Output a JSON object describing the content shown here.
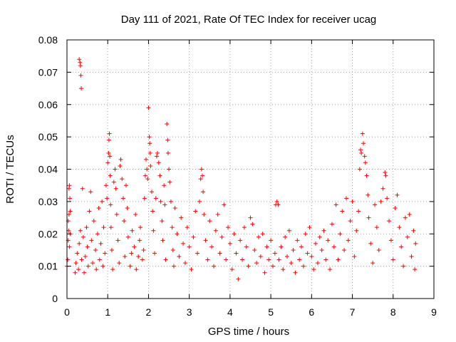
{
  "chart_data": {
    "type": "scatter",
    "title": "Day 111 of 2021, Rate Of TEC Index for receiver ucag",
    "xlabel": "GPS time / hours",
    "ylabel": "ROTI / TECUs",
    "xlim": [
      0,
      9
    ],
    "ylim": [
      0,
      0.08
    ],
    "xticks": [
      0,
      1,
      2,
      3,
      4,
      5,
      6,
      7,
      8,
      9
    ],
    "xtick_labels": [
      "0",
      "1",
      "2",
      "3",
      "4",
      "5",
      "6",
      "7",
      "8",
      "9"
    ],
    "yticks": [
      0,
      0.01,
      0.02,
      0.03,
      0.04,
      0.05,
      0.06,
      0.07,
      0.08
    ],
    "ytick_labels": [
      "0",
      "0.01",
      "0.02",
      "0.03",
      "0.04",
      "0.05",
      "0.06",
      "0.07",
      "0.08"
    ],
    "grid": true,
    "marker": "+",
    "color": "#ff0000",
    "series": [
      {
        "name": "ROTI",
        "points": [
          [
            0.0,
            0.01
          ],
          [
            0.02,
            0.012
          ],
          [
            0.03,
            0.018
          ],
          [
            0.04,
            0.021
          ],
          [
            0.05,
            0.026
          ],
          [
            0.05,
            0.034
          ],
          [
            0.06,
            0.035
          ],
          [
            0.07,
            0.031
          ],
          [
            0.08,
            0.027
          ],
          [
            0.06,
            0.016
          ],
          [
            0.03,
            0.024
          ],
          [
            0.08,
            0.02
          ],
          [
            0.3,
            0.074
          ],
          [
            0.32,
            0.073
          ],
          [
            0.33,
            0.072
          ],
          [
            0.34,
            0.069
          ],
          [
            0.35,
            0.065
          ],
          [
            0.2,
            0.008
          ],
          [
            0.22,
            0.011
          ],
          [
            0.25,
            0.014
          ],
          [
            0.28,
            0.009
          ],
          [
            0.3,
            0.017
          ],
          [
            0.33,
            0.021
          ],
          [
            0.36,
            0.012
          ],
          [
            0.38,
            0.034
          ],
          [
            0.4,
            0.019
          ],
          [
            0.42,
            0.008
          ],
          [
            0.45,
            0.013
          ],
          [
            0.48,
            0.022
          ],
          [
            0.5,
            0.016
          ],
          [
            0.52,
            0.01
          ],
          [
            0.55,
            0.027
          ],
          [
            0.58,
            0.033
          ],
          [
            0.6,
            0.018
          ],
          [
            0.63,
            0.011
          ],
          [
            0.66,
            0.024
          ],
          [
            0.7,
            0.015
          ],
          [
            0.72,
            0.009
          ],
          [
            0.75,
            0.02
          ],
          [
            0.78,
            0.028
          ],
          [
            0.8,
            0.012
          ],
          [
            0.83,
            0.017
          ],
          [
            0.86,
            0.03
          ],
          [
            0.88,
            0.01
          ],
          [
            0.9,
            0.022
          ],
          [
            0.93,
            0.014
          ],
          [
            0.96,
            0.035
          ],
          [
            0.98,
            0.031
          ],
          [
            1.0,
            0.042
          ],
          [
            1.02,
            0.045
          ],
          [
            1.03,
            0.049
          ],
          [
            1.04,
            0.051
          ],
          [
            1.05,
            0.044
          ],
          [
            1.06,
            0.038
          ],
          [
            1.07,
            0.029
          ],
          [
            1.08,
            0.022
          ],
          [
            1.1,
            0.015
          ],
          [
            1.12,
            0.009
          ],
          [
            1.15,
            0.036
          ],
          [
            1.18,
            0.04
          ],
          [
            1.2,
            0.034
          ],
          [
            1.22,
            0.026
          ],
          [
            1.25,
            0.018
          ],
          [
            1.28,
            0.011
          ],
          [
            1.3,
            0.041
          ],
          [
            1.32,
            0.043
          ],
          [
            1.35,
            0.037
          ],
          [
            1.38,
            0.031
          ],
          [
            1.4,
            0.024
          ],
          [
            1.42,
            0.013
          ],
          [
            1.45,
            0.035
          ],
          [
            1.48,
            0.028
          ],
          [
            1.5,
            0.019
          ],
          [
            1.55,
            0.01
          ],
          [
            1.58,
            0.014
          ],
          [
            1.6,
            0.021
          ],
          [
            1.65,
            0.016
          ],
          [
            1.68,
            0.026
          ],
          [
            1.7,
            0.009
          ],
          [
            1.75,
            0.013
          ],
          [
            1.78,
            0.018
          ],
          [
            1.8,
            0.022
          ],
          [
            1.85,
            0.012
          ],
          [
            1.88,
            0.015
          ],
          [
            1.9,
            0.031
          ],
          [
            1.92,
            0.038
          ],
          [
            1.94,
            0.043
          ],
          [
            1.96,
            0.04
          ],
          [
            1.98,
            0.037
          ],
          [
            2.0,
            0.059
          ],
          [
            2.02,
            0.05
          ],
          [
            2.03,
            0.048
          ],
          [
            2.04,
            0.045
          ],
          [
            2.05,
            0.041
          ],
          [
            2.08,
            0.033
          ],
          [
            2.1,
            0.027
          ],
          [
            2.12,
            0.021
          ],
          [
            2.15,
            0.014
          ],
          [
            2.18,
            0.031
          ],
          [
            2.2,
            0.044
          ],
          [
            2.22,
            0.045
          ],
          [
            2.25,
            0.042
          ],
          [
            2.28,
            0.038
          ],
          [
            2.3,
            0.03
          ],
          [
            2.33,
            0.024
          ],
          [
            2.35,
            0.018
          ],
          [
            2.38,
            0.035
          ],
          [
            2.4,
            0.029
          ],
          [
            2.42,
            0.012
          ],
          [
            2.45,
            0.054
          ],
          [
            2.47,
            0.049
          ],
          [
            2.48,
            0.045
          ],
          [
            2.5,
            0.04
          ],
          [
            2.52,
            0.036
          ],
          [
            2.55,
            0.03
          ],
          [
            2.58,
            0.022
          ],
          [
            2.6,
            0.015
          ],
          [
            2.62,
            0.01
          ],
          [
            2.65,
            0.028
          ],
          [
            2.7,
            0.02
          ],
          [
            2.75,
            0.013
          ],
          [
            2.8,
            0.025
          ],
          [
            2.85,
            0.017
          ],
          [
            2.9,
            0.011
          ],
          [
            2.95,
            0.022
          ],
          [
            3.0,
            0.016
          ],
          [
            3.05,
            0.009
          ],
          [
            3.1,
            0.019
          ],
          [
            3.15,
            0.027
          ],
          [
            3.2,
            0.014
          ],
          [
            3.25,
            0.03
          ],
          [
            3.28,
            0.037
          ],
          [
            3.3,
            0.04
          ],
          [
            3.32,
            0.038
          ],
          [
            3.34,
            0.033
          ],
          [
            3.36,
            0.026
          ],
          [
            3.4,
            0.018
          ],
          [
            3.45,
            0.012
          ],
          [
            3.5,
            0.024
          ],
          [
            3.55,
            0.016
          ],
          [
            3.6,
            0.01
          ],
          [
            3.65,
            0.021
          ],
          [
            3.7,
            0.026
          ],
          [
            3.75,
            0.014
          ],
          [
            3.8,
            0.019
          ],
          [
            3.85,
            0.029
          ],
          [
            3.9,
            0.012
          ],
          [
            3.95,
            0.022
          ],
          [
            4.0,
            0.017
          ],
          [
            4.05,
            0.009
          ],
          [
            4.1,
            0.02
          ],
          [
            4.15,
            0.014
          ],
          [
            4.2,
            0.006
          ],
          [
            4.25,
            0.018
          ],
          [
            4.3,
            0.012
          ],
          [
            4.35,
            0.022
          ],
          [
            4.4,
            0.016
          ],
          [
            4.45,
            0.01
          ],
          [
            4.5,
            0.025
          ],
          [
            4.55,
            0.023
          ],
          [
            4.6,
            0.015
          ],
          [
            4.65,
            0.011
          ],
          [
            4.7,
            0.019
          ],
          [
            4.75,
            0.013
          ],
          [
            4.8,
            0.02
          ],
          [
            4.85,
            0.008
          ],
          [
            4.9,
            0.016
          ],
          [
            4.95,
            0.012
          ],
          [
            5.0,
            0.018
          ],
          [
            5.05,
            0.01
          ],
          [
            5.1,
            0.014
          ],
          [
            5.12,
            0.029
          ],
          [
            5.15,
            0.03
          ],
          [
            5.18,
            0.029
          ],
          [
            5.2,
            0.012
          ],
          [
            5.25,
            0.016
          ],
          [
            5.3,
            0.009
          ],
          [
            5.35,
            0.019
          ],
          [
            5.4,
            0.013
          ],
          [
            5.45,
            0.021
          ],
          [
            5.5,
            0.011
          ],
          [
            5.55,
            0.015
          ],
          [
            5.6,
            0.008
          ],
          [
            5.65,
            0.018
          ],
          [
            5.7,
            0.012
          ],
          [
            5.75,
            0.016
          ],
          [
            5.8,
            0.01
          ],
          [
            5.85,
            0.02
          ],
          [
            5.9,
            0.014
          ],
          [
            5.95,
            0.022
          ],
          [
            6.0,
            0.013
          ],
          [
            6.05,
            0.009
          ],
          [
            6.1,
            0.017
          ],
          [
            6.15,
            0.011
          ],
          [
            6.2,
            0.019
          ],
          [
            6.25,
            0.015
          ],
          [
            6.3,
            0.021
          ],
          [
            6.35,
            0.012
          ],
          [
            6.4,
            0.018
          ],
          [
            6.45,
            0.009
          ],
          [
            6.5,
            0.023
          ],
          [
            6.55,
            0.016
          ],
          [
            6.6,
            0.029
          ],
          [
            6.65,
            0.012
          ],
          [
            6.7,
            0.02
          ],
          [
            6.75,
            0.027
          ],
          [
            6.8,
            0.015
          ],
          [
            6.85,
            0.031
          ],
          [
            6.9,
            0.018
          ],
          [
            6.95,
            0.024
          ],
          [
            7.0,
            0.03
          ],
          [
            7.05,
            0.013
          ],
          [
            7.1,
            0.021
          ],
          [
            7.15,
            0.027
          ],
          [
            7.18,
            0.04
          ],
          [
            7.2,
            0.046
          ],
          [
            7.22,
            0.045
          ],
          [
            7.25,
            0.051
          ],
          [
            7.27,
            0.048
          ],
          [
            7.3,
            0.044
          ],
          [
            7.32,
            0.042
          ],
          [
            7.35,
            0.038
          ],
          [
            7.38,
            0.032
          ],
          [
            7.4,
            0.025
          ],
          [
            7.45,
            0.017
          ],
          [
            7.5,
            0.011
          ],
          [
            7.55,
            0.029
          ],
          [
            7.6,
            0.022
          ],
          [
            7.65,
            0.015
          ],
          [
            7.7,
            0.03
          ],
          [
            7.75,
            0.034
          ],
          [
            7.8,
            0.039
          ],
          [
            7.82,
            0.038
          ],
          [
            7.85,
            0.031
          ],
          [
            7.9,
            0.024
          ],
          [
            7.95,
            0.018
          ],
          [
            8.0,
            0.012
          ],
          [
            8.05,
            0.028
          ],
          [
            8.1,
            0.032
          ],
          [
            8.15,
            0.022
          ],
          [
            8.2,
            0.016
          ],
          [
            8.25,
            0.01
          ],
          [
            8.3,
            0.025
          ],
          [
            8.35,
            0.019
          ],
          [
            8.4,
            0.026
          ],
          [
            8.45,
            0.013
          ],
          [
            8.5,
            0.021
          ],
          [
            8.53,
            0.009
          ],
          [
            8.55,
            0.017
          ]
        ]
      }
    ]
  }
}
